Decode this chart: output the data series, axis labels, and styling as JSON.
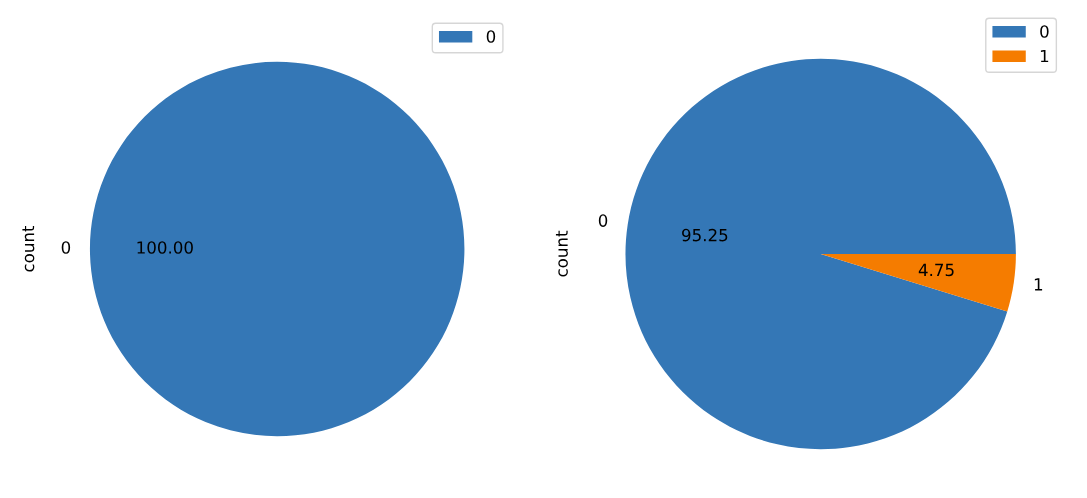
{
  "chart_data": [
    {
      "type": "pie",
      "ylabel": "count",
      "categories": [
        "0"
      ],
      "values": [
        100
      ],
      "colors": [
        "#3477b6"
      ],
      "value_labels": [
        "100.00"
      ],
      "legend": "top right"
    },
    {
      "type": "pie",
      "ylabel": "count",
      "categories": [
        "0",
        "1"
      ],
      "values": [
        95.25,
        4.75
      ],
      "colors": [
        "#3477b6",
        "#f57c00"
      ],
      "value_labels": [
        "95.25",
        "4.75"
      ],
      "legend": "top right"
    }
  ]
}
